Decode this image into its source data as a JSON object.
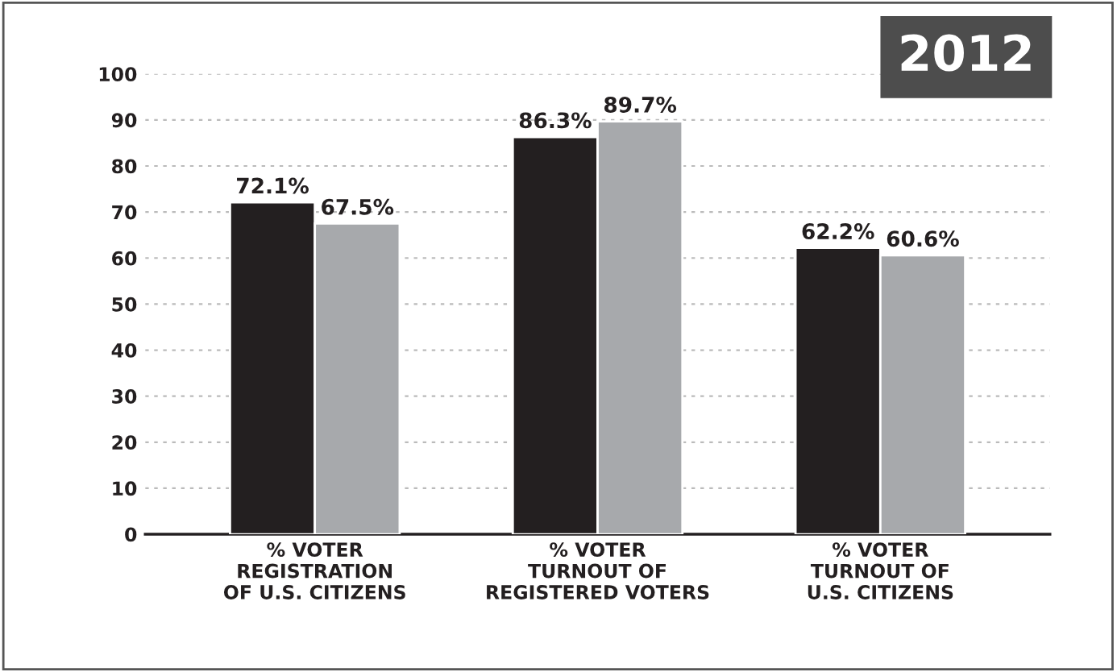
{
  "chart_data": {
    "type": "bar",
    "title": "2012",
    "categories": [
      "% VOTER\nREGISTRATION\nOF U.S. CITIZENS",
      "% VOTER\nTURNOUT OF\nREGISTERED VOTERS",
      "% VOTER\nTURNOUT OF\nU.S. CITIZENS"
    ],
    "series": [
      {
        "color": "#231f20",
        "values": [
          72.1,
          86.3,
          62.2
        ],
        "value_labels": [
          "72.1%",
          "86.3%",
          "62.2%"
        ]
      },
      {
        "color": "#a7a9ac",
        "values": [
          67.5,
          89.7,
          60.6
        ],
        "value_labels": [
          "67.5%",
          "89.7%",
          "60.6%"
        ]
      }
    ],
    "ylim": [
      0,
      100
    ],
    "yticks": [
      0,
      10,
      20,
      30,
      40,
      50,
      60,
      70,
      80,
      90,
      100
    ],
    "grid": "y",
    "legend": false
  }
}
